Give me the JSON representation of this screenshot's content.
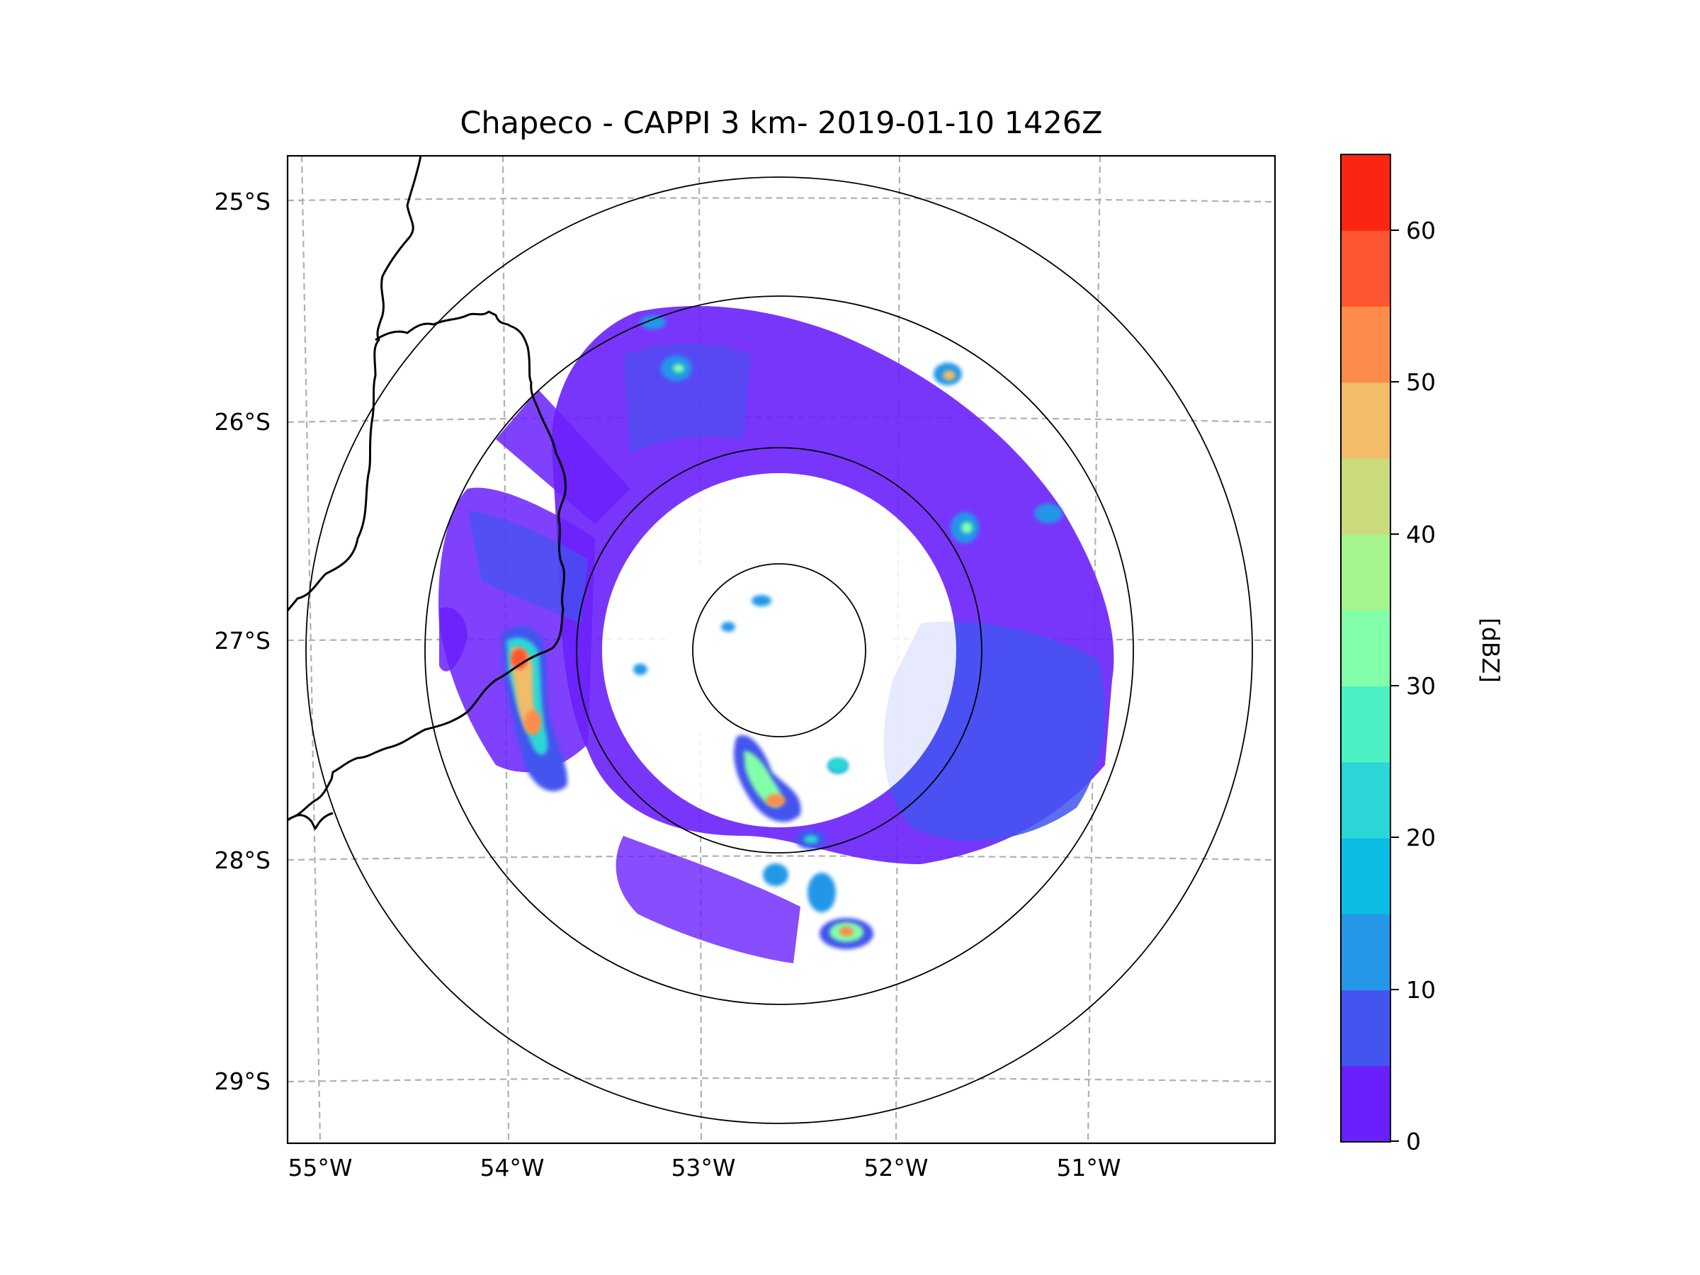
{
  "figure": {
    "title": "Chapeco - CAPPI 3 km- 2019-01-10 1426Z"
  },
  "map": {
    "radar_site": "Chapeco",
    "product": "CAPPI 3 km",
    "lat_labels": [
      "25°S",
      "26°S",
      "27°S",
      "28°S",
      "29°S"
    ],
    "lon_labels": [
      "55°W",
      "54°W",
      "53°W",
      "52°W",
      "51°W"
    ],
    "lat_range": [
      -29.3,
      -24.8
    ],
    "lon_range": [
      -55.2,
      -50.05
    ],
    "range_ring_count": 4,
    "gridlines": "dashed gray",
    "boundaries": "state borders (black)"
  },
  "colorbar": {
    "label": "[dBZ]",
    "tick_labels": [
      "0",
      "10",
      "20",
      "30",
      "40",
      "50",
      "60"
    ],
    "min": 0,
    "max": 65,
    "levels": [
      0,
      5,
      10,
      15,
      20,
      25,
      30,
      35,
      40,
      45,
      50,
      55,
      60,
      65
    ],
    "colors": [
      "#6a20fb",
      "#4255ef",
      "#2497e8",
      "#0bbde2",
      "#2ad7d6",
      "#4bf0c4",
      "#82ffa8",
      "#a6f58c",
      "#cadb7c",
      "#f2bc6a",
      "#fd8c4c",
      "#fe5630",
      "#fc2412"
    ]
  },
  "echoes": {
    "colors": {
      "weak": "#6a20fb",
      "light": "#4255ef",
      "moderate_low": "#2497e8",
      "moderate": "#2ad7d6",
      "moderate_high": "#82ffa8",
      "strong": "#f2bc6a",
      "very_strong": "#fd8c4c",
      "intense": "#fe5630"
    }
  }
}
